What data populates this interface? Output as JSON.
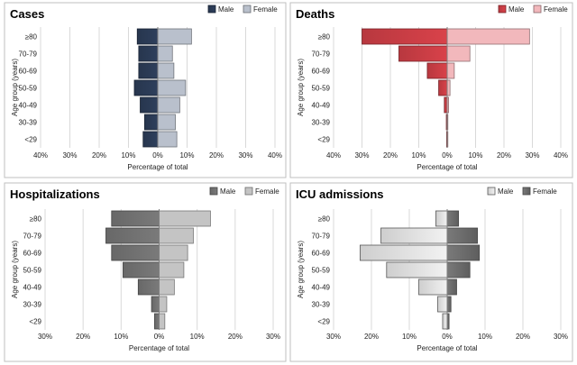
{
  "chart_data": [
    {
      "type": "bar",
      "title": "Cases",
      "xlabel": "Percentage of total",
      "ylabel": "Age group (years)",
      "xlim": [
        -40,
        40
      ],
      "x_ticks": [
        -40,
        -30,
        -20,
        -10,
        0,
        10,
        20,
        30,
        40
      ],
      "x_tick_labels": [
        "40%",
        "30%",
        "20%",
        "10%",
        "0%",
        "10%",
        "20%",
        "30%",
        "40%"
      ],
      "categories": [
        "≥80",
        "70-79",
        "60-69",
        "50-59",
        "40-49",
        "30-39",
        "<29"
      ],
      "series": [
        {
          "name": "Male",
          "values": [
            -7,
            -6.5,
            -6.5,
            -8,
            -6,
            -4.5,
            -5
          ],
          "color": "#2e3f5c"
        },
        {
          "name": "Female",
          "values": [
            11.5,
            5,
            5.5,
            9.5,
            7.5,
            6,
            6.5
          ],
          "color": "#b9c0cc"
        }
      ],
      "legend": "top-right",
      "grid": true
    },
    {
      "type": "bar",
      "title": "Deaths",
      "xlabel": "Percentage of total",
      "ylabel": "Age group (years)",
      "xlim": [
        -40,
        40
      ],
      "x_ticks": [
        -40,
        -30,
        -20,
        -10,
        0,
        10,
        20,
        30,
        40
      ],
      "x_tick_labels": [
        "40%",
        "30%",
        "20%",
        "10%",
        "0%",
        "10%",
        "20%",
        "30%",
        "40%"
      ],
      "categories": [
        "≥80",
        "70-79",
        "60-69",
        "50-59",
        "40-49",
        "30-39",
        "<29"
      ],
      "series": [
        {
          "name": "Male",
          "values": [
            -30,
            -17,
            -7,
            -3,
            -1,
            -0.3,
            -0.2
          ],
          "color": "#d9424a"
        },
        {
          "name": "Female",
          "values": [
            29,
            8,
            2.5,
            1,
            0.5,
            0.2,
            0.1
          ],
          "color": "#f2b8bc"
        }
      ],
      "legend": "top-right",
      "grid": true
    },
    {
      "type": "bar",
      "title": "Hospitalizations",
      "xlabel": "Percentage of total",
      "ylabel": "Age group (years)",
      "xlim": [
        -30,
        30
      ],
      "x_ticks": [
        -30,
        -20,
        -10,
        0,
        10,
        20,
        30
      ],
      "x_tick_labels": [
        "30%",
        "20%",
        "10%",
        "0%",
        "10%",
        "20%",
        "30%"
      ],
      "categories": [
        "≥80",
        "70-79",
        "60-69",
        "50-59",
        "40-49",
        "30-39",
        "<29"
      ],
      "series": [
        {
          "name": "Male",
          "values": [
            -12.5,
            -14,
            -12.5,
            -9.5,
            -5.5,
            -2,
            -1.2
          ],
          "color": "#7a7a7a"
        },
        {
          "name": "Female",
          "values": [
            13.5,
            9,
            7.5,
            6.5,
            4,
            2,
            1.5
          ],
          "color": "#c4c4c4"
        }
      ],
      "legend": "top-right",
      "grid": true
    },
    {
      "type": "bar",
      "title": "ICU admissions",
      "xlabel": "Percentage of total",
      "ylabel": "Age group (years)",
      "xlim": [
        -30,
        30
      ],
      "x_ticks": [
        -30,
        -20,
        -10,
        0,
        10,
        20,
        30
      ],
      "x_tick_labels": [
        "30%",
        "20%",
        "10%",
        "0%",
        "10%",
        "20%",
        "30%"
      ],
      "categories": [
        "≥80",
        "70-79",
        "60-69",
        "50-59",
        "40-49",
        "30-39",
        "<29"
      ],
      "series": [
        {
          "name": "Male",
          "values": [
            -3,
            -17.5,
            -23,
            -16,
            -7.5,
            -2.5,
            -1.2
          ],
          "color": "#f2f2f2"
        },
        {
          "name": "Female",
          "values": [
            3,
            8,
            8.5,
            6,
            2.5,
            1,
            0.5
          ],
          "color": "#7a7a7a"
        }
      ],
      "legend": "top-right",
      "grid": true
    }
  ]
}
